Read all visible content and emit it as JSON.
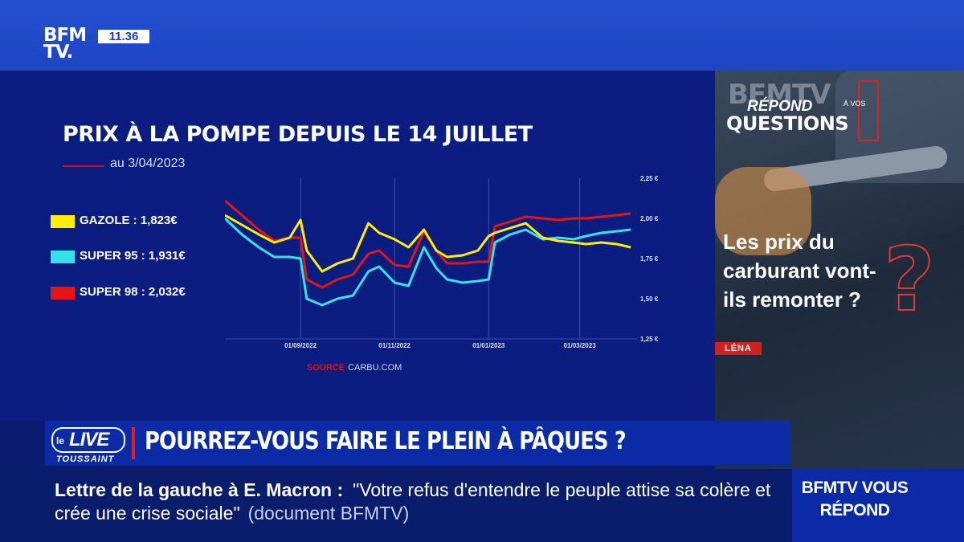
{
  "channel": {
    "logo_line1": "BFM",
    "logo_line2": "TV.",
    "time": "11.36"
  },
  "chart_data": {
    "type": "line",
    "title": "PRIX À LA POMPE DEPUIS LE 14 JUILLET",
    "subtitle": "au 3/04/2023",
    "x_tick_labels": [
      "01/09/2022",
      "01/11/2022",
      "01/01/2023",
      "01/03/2023"
    ],
    "y_tick_labels": [
      "2,25 €",
      "2,00 €",
      "1,75 €",
      "1,50 €",
      "1,25 €"
    ],
    "ylim": [
      1.25,
      2.25
    ],
    "xlim": [
      "2022-07-14",
      "2023-04-03"
    ],
    "grid": "vertical",
    "legend_position": "left",
    "series": [
      {
        "name": "GAZOLE : 1,823€",
        "color": "#ffee00",
        "x": [
          "2022-07-14",
          "2022-07-25",
          "2022-08-05",
          "2022-08-15",
          "2022-08-25",
          "2022-09-01",
          "2022-09-05",
          "2022-09-15",
          "2022-09-25",
          "2022-10-05",
          "2022-10-15",
          "2022-10-22",
          "2022-11-01",
          "2022-11-10",
          "2022-11-20",
          "2022-11-28",
          "2022-12-05",
          "2022-12-15",
          "2022-12-25",
          "2023-01-01",
          "2023-01-05",
          "2023-01-15",
          "2023-01-25",
          "2023-02-05",
          "2023-02-15",
          "2023-02-25",
          "2023-03-05",
          "2023-03-15",
          "2023-03-25",
          "2023-04-03"
        ],
        "values": [
          2.02,
          1.96,
          1.9,
          1.85,
          1.88,
          1.99,
          1.8,
          1.67,
          1.72,
          1.75,
          1.97,
          1.91,
          1.87,
          1.82,
          1.93,
          1.8,
          1.76,
          1.77,
          1.8,
          1.89,
          1.91,
          1.94,
          1.97,
          1.88,
          1.86,
          1.85,
          1.84,
          1.85,
          1.84,
          1.82
        ]
      },
      {
        "name": "SUPER 95 : 1,931€",
        "color": "#33e3ea",
        "x": [
          "2022-07-14",
          "2022-07-25",
          "2022-08-05",
          "2022-08-15",
          "2022-08-25",
          "2022-09-01",
          "2022-09-05",
          "2022-09-15",
          "2022-09-25",
          "2022-10-05",
          "2022-10-15",
          "2022-10-22",
          "2022-11-01",
          "2022-11-10",
          "2022-11-20",
          "2022-11-28",
          "2022-12-05",
          "2022-12-15",
          "2022-12-25",
          "2023-01-01",
          "2023-01-05",
          "2023-01-15",
          "2023-01-25",
          "2023-02-05",
          "2023-02-15",
          "2023-02-25",
          "2023-03-05",
          "2023-03-15",
          "2023-03-25",
          "2023-04-03"
        ],
        "values": [
          2.0,
          1.9,
          1.82,
          1.76,
          1.76,
          1.75,
          1.5,
          1.46,
          1.5,
          1.52,
          1.67,
          1.7,
          1.6,
          1.58,
          1.82,
          1.69,
          1.62,
          1.6,
          1.61,
          1.62,
          1.85,
          1.9,
          1.93,
          1.87,
          1.88,
          1.87,
          1.89,
          1.91,
          1.92,
          1.93
        ]
      },
      {
        "name": "SUPER 98 : 2,032€",
        "color": "#e31515",
        "x": [
          "2022-07-14",
          "2022-07-25",
          "2022-08-05",
          "2022-08-15",
          "2022-08-25",
          "2022-09-01",
          "2022-09-05",
          "2022-09-15",
          "2022-09-25",
          "2022-10-05",
          "2022-10-15",
          "2022-10-22",
          "2022-11-01",
          "2022-11-10",
          "2022-11-20",
          "2022-11-28",
          "2022-12-05",
          "2022-12-15",
          "2022-12-25",
          "2023-01-01",
          "2023-01-05",
          "2023-01-15",
          "2023-01-25",
          "2023-02-05",
          "2023-02-15",
          "2023-02-25",
          "2023-03-05",
          "2023-03-15",
          "2023-03-25",
          "2023-04-03"
        ],
        "values": [
          2.11,
          2.02,
          1.93,
          1.86,
          1.88,
          1.88,
          1.62,
          1.57,
          1.62,
          1.65,
          1.78,
          1.8,
          1.71,
          1.7,
          1.92,
          1.8,
          1.72,
          1.72,
          1.73,
          1.73,
          1.95,
          1.98,
          2.01,
          2.0,
          1.99,
          2.0,
          2.0,
          2.01,
          2.02,
          2.03
        ]
      }
    ],
    "source_label": "SOURCE",
    "source_value": "CARBU.COM"
  },
  "side_panel": {
    "brand": "BFMTV",
    "repond": "RÉPOND",
    "a_vos": "À VOS",
    "questions": "QUESTIONS",
    "question": "Les prix du carburant vont-ils remonter ?",
    "presenter": "LÉNA"
  },
  "headline": {
    "live_le": "le",
    "live_word": "LIVE",
    "live_host": "TOUSSAINT",
    "text": "POURREZ-VOUS FAIRE LE PLEIN À PÂQUES ?"
  },
  "ticker": {
    "lead": "Lettre de la gauche à E. Macron :",
    "quote": "\"Votre refus d'entendre le peuple attise sa colère et crée une crise sociale\"",
    "note": "(document BFMTV)"
  },
  "program_tag": "BFMTV VOUS RÉPOND"
}
